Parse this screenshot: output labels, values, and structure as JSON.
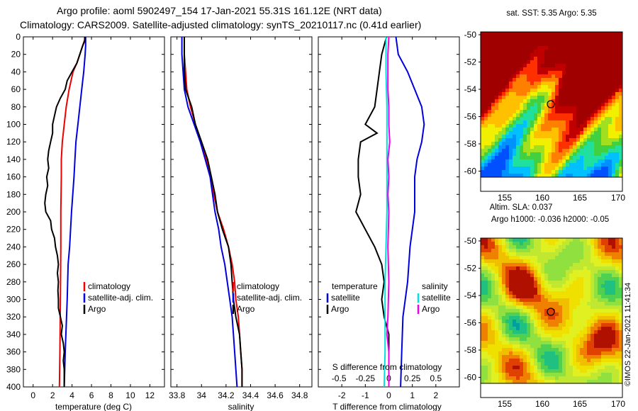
{
  "header": {
    "line1": "Argo profile: aoml 5902497_154 17-Jan-2021 55.31S 161.12E (NRT data)",
    "line2": "Climatology: CARS2009. Satellite-adjusted climatology: synTS_20210117.nc (0.41d earlier)"
  },
  "credit": "©IMOS 22-Jan-2021 11:41:34",
  "colors": {
    "climatology": "#ee0000",
    "satellite": "#0000dd",
    "argo": "#000000",
    "sat_s": "#00e0e0",
    "argo_s": "#ee00ee"
  },
  "chart_data": [
    {
      "type": "line",
      "id": "temperature",
      "xlabel": "temperature (deg C)",
      "xlim": [
        -1,
        13.5
      ],
      "ylim": [
        400,
        0
      ],
      "xticks": [
        0,
        2,
        4,
        6,
        8,
        10,
        12
      ],
      "xtick_labels": [
        "0",
        "2",
        "4",
        "6",
        "8",
        "10",
        "12"
      ],
      "yticks": [
        0,
        20,
        40,
        60,
        80,
        100,
        120,
        140,
        160,
        180,
        200,
        220,
        240,
        260,
        280,
        300,
        320,
        340,
        360,
        380,
        400
      ],
      "ytick_labels": [
        "0",
        "20",
        "40",
        "60",
        "80",
        "100",
        "120",
        "140",
        "160",
        "180",
        "200",
        "220",
        "240",
        "260",
        "280",
        "300",
        "320",
        "340",
        "360",
        "380",
        "400"
      ],
      "legend": [
        "climatology",
        "satellite-adj. clim.",
        "Argo"
      ],
      "series": [
        {
          "name": "climatology",
          "color": "#ee0000",
          "depth": [
            0,
            10,
            20,
            30,
            40,
            60,
            80,
            100,
            120,
            140,
            160,
            200,
            240,
            300,
            360,
            400
          ],
          "values": [
            5.4,
            5.1,
            4.8,
            4.5,
            4.1,
            3.7,
            3.4,
            3.2,
            3.0,
            2.9,
            2.9,
            2.85,
            2.85,
            2.8,
            2.75,
            2.7
          ]
        },
        {
          "name": "satellite-adj. clim.",
          "color": "#0000dd",
          "depth": [
            0,
            10,
            20,
            40,
            60,
            80,
            100,
            120,
            140,
            160,
            200,
            240,
            260,
            300,
            360,
            400
          ],
          "values": [
            5.4,
            5.4,
            5.35,
            5.2,
            5.0,
            4.8,
            4.6,
            4.4,
            4.3,
            4.2,
            3.95,
            3.75,
            3.6,
            3.5,
            3.3,
            3.2
          ]
        },
        {
          "name": "Argo",
          "color": "#000000",
          "depth": [
            0,
            5,
            10,
            20,
            30,
            40,
            50,
            60,
            70,
            80,
            90,
            100,
            110,
            120,
            130,
            140,
            150,
            160,
            170,
            180,
            190,
            200,
            210,
            220,
            230,
            240,
            250,
            260,
            270,
            280,
            290,
            300,
            310,
            320,
            330,
            340,
            350,
            360,
            370,
            380,
            390,
            400
          ],
          "values": [
            5.3,
            5.3,
            5.1,
            4.8,
            4.5,
            4.0,
            3.5,
            3.3,
            2.8,
            2.4,
            2.2,
            2.0,
            2.0,
            1.8,
            1.6,
            1.5,
            1.6,
            1.4,
            1.5,
            1.3,
            1.2,
            1.3,
            1.8,
            1.9,
            2.2,
            2.3,
            2.5,
            2.6,
            2.5,
            2.6,
            2.55,
            2.6,
            2.6,
            2.8,
            3.0,
            2.9,
            3.1,
            3.2,
            3.1,
            3.2,
            3.2,
            3.2
          ]
        }
      ]
    },
    {
      "type": "line",
      "id": "salinity",
      "xlabel": "salinity",
      "xlim": [
        33.75,
        34.9
      ],
      "ylim": [
        400,
        0
      ],
      "xticks": [
        33.8,
        34.0,
        34.2,
        34.4,
        34.6,
        34.8
      ],
      "xtick_labels": [
        "33.8",
        "34",
        "34.2",
        "34.4",
        "34.6",
        "34.8"
      ],
      "legend": [
        "climatology",
        "satellite-adj. clim.",
        "Argo"
      ],
      "series": [
        {
          "name": "climatology",
          "color": "#ee0000",
          "depth": [
            0,
            20,
            40,
            60,
            80,
            100,
            120,
            140,
            160,
            180,
            200,
            220,
            240,
            260,
            280,
            300,
            320,
            340,
            360,
            380,
            400
          ],
          "values": [
            33.86,
            33.86,
            33.87,
            33.88,
            33.91,
            33.95,
            34.0,
            34.04,
            34.08,
            34.1,
            34.13,
            34.18,
            34.22,
            34.25,
            34.27,
            34.28,
            34.3,
            34.31,
            34.32,
            34.33,
            34.33
          ]
        },
        {
          "name": "satellite-adj. clim.",
          "color": "#0000dd",
          "depth": [
            0,
            20,
            40,
            60,
            80,
            100,
            120,
            140,
            160,
            180,
            200,
            220,
            240,
            260,
            280,
            300,
            320,
            340,
            360,
            380,
            400
          ],
          "values": [
            33.84,
            33.84,
            33.85,
            33.86,
            33.89,
            33.94,
            33.99,
            34.03,
            34.07,
            34.09,
            34.11,
            34.14,
            34.16,
            34.19,
            34.21,
            34.23,
            34.25,
            34.26,
            34.27,
            34.28,
            34.29
          ]
        },
        {
          "name": "Argo",
          "color": "#000000",
          "depth": [
            0,
            10,
            20,
            40,
            60,
            80,
            100,
            120,
            140,
            160,
            180,
            200,
            220,
            240,
            260,
            280,
            300,
            320,
            340,
            360,
            380,
            400
          ],
          "values": [
            33.86,
            33.86,
            33.86,
            33.86,
            33.87,
            33.92,
            33.95,
            34.0,
            34.05,
            34.08,
            34.11,
            34.13,
            34.17,
            34.22,
            34.24,
            34.25,
            34.26,
            34.28,
            34.31,
            34.32,
            34.33,
            34.33
          ]
        }
      ]
    },
    {
      "type": "line",
      "id": "difference",
      "xlabel": "T difference from climatology",
      "xlabel_s": "S difference from climatology",
      "xlim": [
        -3,
        3
      ],
      "ylim": [
        400,
        0
      ],
      "xticks": [
        -2,
        -1,
        0,
        1,
        2
      ],
      "xtick_labels": [
        "-2",
        "-1",
        "0",
        "1",
        "2"
      ],
      "s_tick_labels": [
        "-0.5",
        "-0.25",
        "0",
        "0.25",
        "0.5"
      ],
      "legend_t_title": "temperature",
      "legend_s_title": "salinity",
      "legend": [
        "satellite",
        "Argo",
        "satellite",
        "Argo"
      ],
      "series": [
        {
          "name": "T satellite",
          "color": "#0000dd",
          "depth": [
            0,
            20,
            40,
            60,
            80,
            100,
            120,
            140,
            160,
            200,
            240,
            280,
            300,
            320,
            360,
            400
          ],
          "values": [
            0.3,
            0.4,
            0.8,
            1.1,
            1.4,
            1.5,
            1.4,
            1.2,
            1.1,
            1.1,
            0.9,
            0.8,
            0.7,
            0.6,
            0.55,
            0.5
          ]
        },
        {
          "name": "T Argo",
          "color": "#000000",
          "depth": [
            0,
            20,
            40,
            60,
            80,
            100,
            110,
            120,
            140,
            160,
            180,
            200,
            220,
            240,
            260,
            280,
            300,
            320,
            340,
            360,
            380,
            400
          ],
          "values": [
            -0.1,
            -0.3,
            -0.4,
            -0.5,
            -0.6,
            -1.0,
            -0.5,
            -1.2,
            -1.3,
            -1.3,
            -1.2,
            -1.4,
            -1.0,
            -0.6,
            -0.3,
            -0.2,
            -0.3,
            -0.2,
            0.0,
            0.0,
            0.0,
            0.0
          ]
        },
        {
          "name": "S satellite",
          "color": "#00e0e0",
          "depth": [
            0,
            40,
            80,
            120,
            160,
            200,
            240,
            280,
            320,
            360,
            400
          ],
          "values": [
            -0.03,
            -0.03,
            -0.02,
            -0.02,
            -0.02,
            -0.02,
            -0.03,
            -0.04,
            -0.04,
            -0.04,
            -0.05
          ]
        },
        {
          "name": "S Argo",
          "color": "#ee00ee",
          "depth": [
            0,
            20,
            40,
            60,
            80,
            100,
            120,
            140,
            160,
            180,
            200,
            240,
            280,
            320,
            340,
            360,
            400
          ],
          "values": [
            0.0,
            -0.01,
            -0.01,
            -0.01,
            0.0,
            0.0,
            0.01,
            -0.01,
            0.0,
            -0.01,
            0.0,
            -0.01,
            0.0,
            -0.01,
            -0.02,
            0.0,
            0.0
          ]
        }
      ]
    }
  ],
  "maps": [
    {
      "id": "sst",
      "title": "sat. SST: 5.35 Argo: 5.35",
      "lon_ticks": [
        "155",
        "160",
        "165",
        "170"
      ],
      "lat_ticks": [
        "-50",
        "-52",
        "-54",
        "-56",
        "-58",
        "-60"
      ]
    },
    {
      "id": "sla",
      "title1": "Altim. SLA: 0.037",
      "title2": "Argo h1000: -0.036 h2000: -0.05",
      "lon_ticks": [
        "155",
        "160",
        "165",
        "170"
      ],
      "lat_ticks": [
        "-50",
        "-52",
        "-54",
        "-56",
        "-58",
        "-60"
      ]
    }
  ]
}
